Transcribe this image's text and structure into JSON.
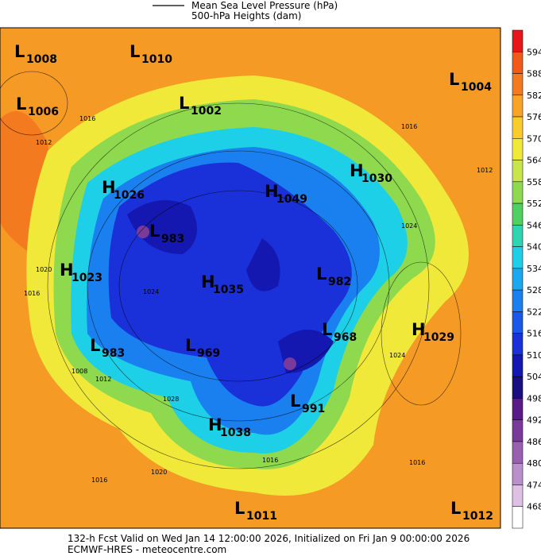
{
  "legend": {
    "items": [
      "Mean Sea Level Pressure (hPa)",
      "500-hPa Heights (dam)"
    ]
  },
  "colorbar": {
    "ticks": [
      594,
      588,
      582,
      576,
      570,
      564,
      558,
      552,
      546,
      540,
      534,
      528,
      522,
      516,
      510,
      504,
      498,
      492,
      486,
      480,
      474,
      468
    ],
    "colors": [
      "#e8161a",
      "#f25a1a",
      "#f47a1f",
      "#f9a428",
      "#f8cc2d",
      "#f0e93a",
      "#c8e64a",
      "#8fd94f",
      "#4fd060",
      "#2fd5b0",
      "#1ecfe8",
      "#1aa8f0",
      "#1a80ef",
      "#1a58e8",
      "#1a30d8",
      "#1418b0",
      "#1a0f80",
      "#5a1a88",
      "#7a3a9a",
      "#9a60b0",
      "#bb8fcc",
      "#ddc0e4",
      "#ffffff"
    ]
  },
  "centers": [
    {
      "letter": "L",
      "value": 1008
    },
    {
      "letter": "L",
      "value": 1010
    },
    {
      "letter": "L",
      "value": 1004
    },
    {
      "letter": "L",
      "value": 1006
    },
    {
      "letter": "L",
      "value": 1002
    },
    {
      "letter": "H",
      "value": 1030
    },
    {
      "letter": "H",
      "value": 1026
    },
    {
      "letter": "H",
      "value": 1049
    },
    {
      "letter": "L",
      "value": 983
    },
    {
      "letter": "H",
      "value": 1023
    },
    {
      "letter": "H",
      "value": 1035
    },
    {
      "letter": "L",
      "value": 982
    },
    {
      "letter": "L",
      "value": 968
    },
    {
      "letter": "H",
      "value": 1029
    },
    {
      "letter": "L",
      "value": 983
    },
    {
      "letter": "L",
      "value": 969
    },
    {
      "letter": "L",
      "value": 991
    },
    {
      "letter": "H",
      "value": 1038
    },
    {
      "letter": "L",
      "value": 1011
    },
    {
      "letter": "L",
      "value": 1012
    }
  ],
  "contour_labels": [
    1016,
    1012,
    1016,
    1012,
    1024,
    1016,
    1020,
    1024,
    1008,
    1012,
    1028,
    1020,
    1016,
    1016,
    1024,
    1016
  ],
  "footer": {
    "line1": "132-h Fcst Valid on Wed Jan 14 12:00:00 2026, Initialized on Fri Jan  9 00:00:00 2026",
    "line2": "ECMWF-HRES  - meteocentre.com"
  }
}
